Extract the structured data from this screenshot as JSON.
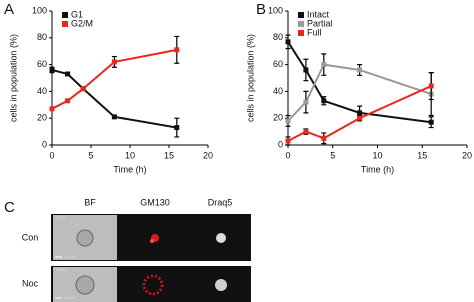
{
  "chart_data": [
    {
      "type": "line",
      "panel_label": "A",
      "xlabel": "Time (h)",
      "ylabel": "cells in population (%)",
      "x": [
        0,
        2,
        4,
        8,
        16
      ],
      "xlim": [
        0,
        20
      ],
      "xticks": [
        0,
        5,
        10,
        15,
        20
      ],
      "ylim": [
        0,
        100
      ],
      "yticks": [
        0,
        20,
        40,
        60,
        80,
        100
      ],
      "legend": "upper left",
      "series": [
        {
          "name": "G1",
          "color": "#111111",
          "values": [
            56,
            53,
            42,
            21,
            13
          ],
          "errors": [
            2,
            1,
            1,
            1,
            7
          ]
        },
        {
          "name": "G2/M",
          "color": "#e8281e",
          "values": [
            27,
            33,
            42,
            62,
            71
          ],
          "errors": [
            1,
            1,
            1,
            4,
            10
          ]
        }
      ]
    },
    {
      "type": "line",
      "panel_label": "B",
      "xlabel": "Time (h)",
      "ylabel": "cells in population (%)",
      "x": [
        0,
        2,
        4,
        8,
        16
      ],
      "xlim": [
        0,
        20
      ],
      "xticks": [
        0,
        5,
        10,
        15,
        20
      ],
      "ylim": [
        0,
        100
      ],
      "yticks": [
        0,
        20,
        40,
        60,
        80,
        100
      ],
      "legend": "upper left",
      "series": [
        {
          "name": "Intact",
          "color": "#111111",
          "values": [
            77,
            56,
            33,
            24,
            17
          ],
          "errors": [
            5,
            8,
            3,
            5,
            4
          ]
        },
        {
          "name": "Partial",
          "color": "#999999",
          "values": [
            18,
            32,
            60,
            56,
            38
          ],
          "errors": [
            4,
            8,
            8,
            4,
            16
          ]
        },
        {
          "name": "Full",
          "color": "#e8281e",
          "values": [
            3,
            10,
            5,
            20,
            44
          ],
          "errors": [
            3,
            2,
            4,
            2,
            10
          ]
        }
      ]
    }
  ],
  "panel_c": {
    "panel_label": "C",
    "columns": [
      "BF",
      "GM130",
      "Draq5"
    ],
    "rows": [
      {
        "label": "Con",
        "id": "28077",
        "scale": "10 µm"
      },
      {
        "label": "Noc",
        "id": "18461",
        "scale": "10 µm"
      }
    ]
  }
}
